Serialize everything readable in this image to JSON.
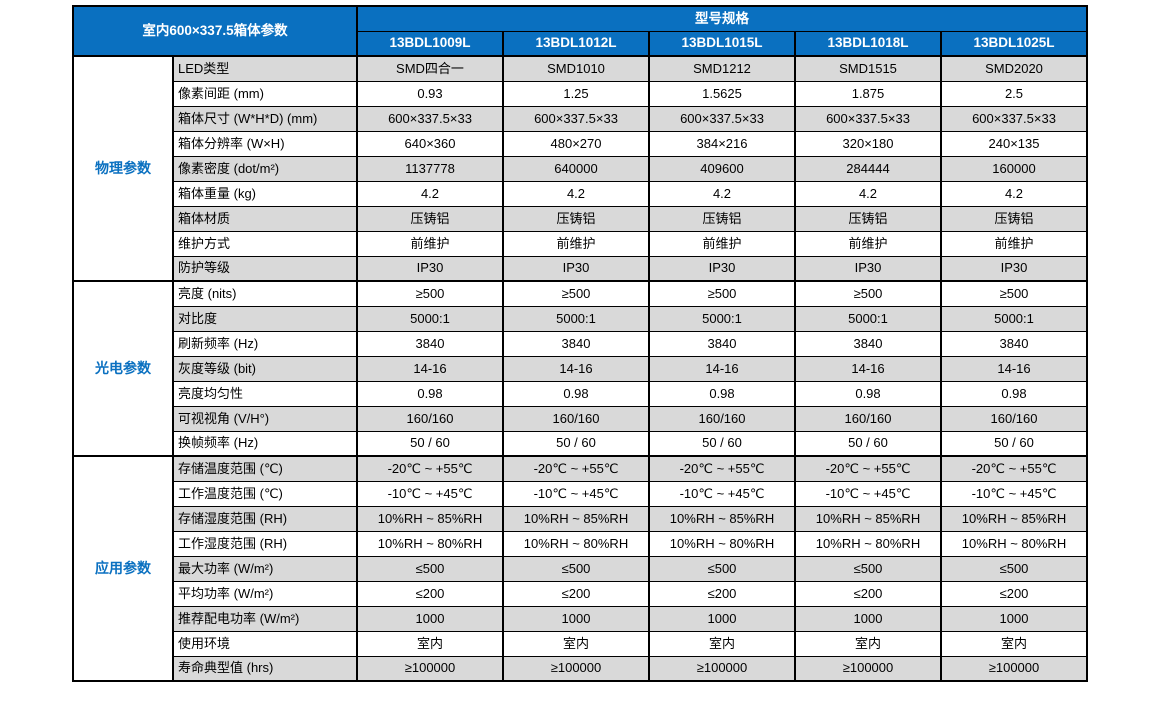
{
  "table": {
    "left_header": "室内600×337.5箱体参数",
    "spec_header": "型号规格",
    "models": [
      "13BDL1009L",
      "13BDL1012L",
      "13BDL1015L",
      "13BDL1018L",
      "13BDL1025L"
    ],
    "groups": [
      {
        "name": "物理参数",
        "rows": [
          {
            "label": "LED类型",
            "values": [
              "SMD四合一",
              "SMD1010",
              "SMD1212",
              "SMD1515",
              "SMD2020"
            ]
          },
          {
            "label": "像素间距 (mm)",
            "values": [
              "0.93",
              "1.25",
              "1.5625",
              "1.875",
              "2.5"
            ]
          },
          {
            "label": "箱体尺寸 (W*H*D) (mm)",
            "values": [
              "600×337.5×33",
              "600×337.5×33",
              "600×337.5×33",
              "600×337.5×33",
              "600×337.5×33"
            ]
          },
          {
            "label": "箱体分辨率 (W×H)",
            "values": [
              "640×360",
              "480×270",
              "384×216",
              "320×180",
              "240×135"
            ]
          },
          {
            "label": "像素密度 (dot/m²)",
            "values": [
              "1137778",
              "640000",
              "409600",
              "284444",
              "160000"
            ]
          },
          {
            "label": "箱体重量 (kg)",
            "values": [
              "4.2",
              "4.2",
              "4.2",
              "4.2",
              "4.2"
            ]
          },
          {
            "label": "箱体材质",
            "values": [
              "压铸铝",
              "压铸铝",
              "压铸铝",
              "压铸铝",
              "压铸铝"
            ]
          },
          {
            "label": "维护方式",
            "values": [
              "前维护",
              "前维护",
              "前维护",
              "前维护",
              "前维护"
            ]
          },
          {
            "label": "防护等级",
            "values": [
              "IP30",
              "IP30",
              "IP30",
              "IP30",
              "IP30"
            ]
          }
        ]
      },
      {
        "name": "光电参数",
        "rows": [
          {
            "label": "亮度 (nits)",
            "values": [
              "≥500",
              "≥500",
              "≥500",
              "≥500",
              "≥500"
            ]
          },
          {
            "label": "对比度",
            "values": [
              "5000:1",
              "5000:1",
              "5000:1",
              "5000:1",
              "5000:1"
            ]
          },
          {
            "label": "刷新频率 (Hz)",
            "values": [
              "3840",
              "3840",
              "3840",
              "3840",
              "3840"
            ]
          },
          {
            "label": "灰度等级 (bit)",
            "values": [
              "14-16",
              "14-16",
              "14-16",
              "14-16",
              "14-16"
            ]
          },
          {
            "label": "亮度均匀性",
            "values": [
              "0.98",
              "0.98",
              "0.98",
              "0.98",
              "0.98"
            ]
          },
          {
            "label": "可视视角 (V/H°)",
            "values": [
              "160/160",
              "160/160",
              "160/160",
              "160/160",
              "160/160"
            ]
          },
          {
            "label": "换帧频率 (Hz)",
            "values": [
              "50 / 60",
              "50 / 60",
              "50 / 60",
              "50 / 60",
              "50 / 60"
            ]
          }
        ]
      },
      {
        "name": "应用参数",
        "rows": [
          {
            "label": "存储温度范围 (℃)",
            "values": [
              "-20℃ ~ +55℃",
              "-20℃ ~ +55℃",
              "-20℃ ~ +55℃",
              "-20℃ ~ +55℃",
              "-20℃ ~ +55℃"
            ]
          },
          {
            "label": "工作温度范围 (℃)",
            "values": [
              "-10℃ ~ +45℃",
              "-10℃ ~ +45℃",
              "-10℃ ~ +45℃",
              "-10℃ ~ +45℃",
              "-10℃ ~ +45℃"
            ]
          },
          {
            "label": "存储湿度范围 (RH)",
            "values": [
              "10%RH ~ 85%RH",
              "10%RH ~ 85%RH",
              "10%RH ~ 85%RH",
              "10%RH ~ 85%RH",
              "10%RH ~ 85%RH"
            ]
          },
          {
            "label": "工作湿度范围 (RH)",
            "values": [
              "10%RH ~ 80%RH",
              "10%RH ~ 80%RH",
              "10%RH ~ 80%RH",
              "10%RH ~ 80%RH",
              "10%RH ~ 80%RH"
            ]
          },
          {
            "label": "最大功率 (W/m²)",
            "values": [
              "≤500",
              "≤500",
              "≤500",
              "≤500",
              "≤500"
            ]
          },
          {
            "label": "平均功率 (W/m²)",
            "values": [
              "≤200",
              "≤200",
              "≤200",
              "≤200",
              "≤200"
            ]
          },
          {
            "label": "推荐配电功率 (W/m²)",
            "values": [
              "1000",
              "1000",
              "1000",
              "1000",
              "1000"
            ]
          },
          {
            "label": "使用环境",
            "values": [
              "室内",
              "室内",
              "室内",
              "室内",
              "室内"
            ]
          },
          {
            "label": "寿命典型值 (hrs)",
            "values": [
              "≥100000",
              "≥100000",
              "≥100000",
              "≥100000",
              "≥100000"
            ]
          }
        ]
      }
    ],
    "colors": {
      "header_blue": "#0a70c0",
      "group_text_blue": "#0a70c0",
      "row_gray": "#d9d9d9",
      "row_white": "#ffffff",
      "border_black": "#000000"
    }
  }
}
